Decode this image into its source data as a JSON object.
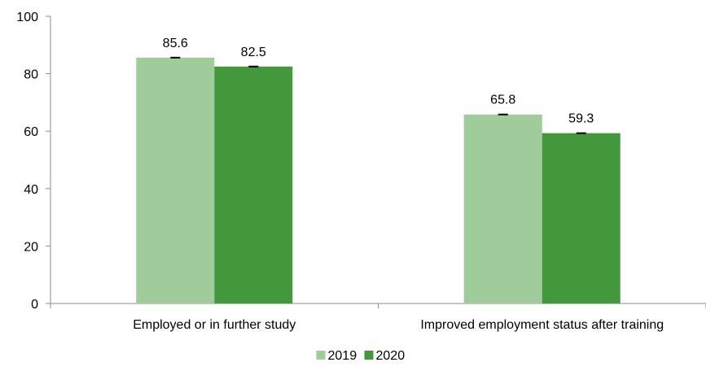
{
  "chart_data": {
    "type": "bar",
    "title": "",
    "xlabel": "",
    "ylabel": "",
    "ylim": [
      0,
      100
    ],
    "yticks": [
      0,
      20,
      40,
      60,
      80,
      100
    ],
    "categories": [
      "Employed or in further study",
      "Improved employment status after training"
    ],
    "series": [
      {
        "name": "2019",
        "values": [
          85.6,
          65.8
        ],
        "color": "#a0cb9a"
      },
      {
        "name": "2020",
        "values": [
          82.5,
          59.3
        ],
        "color": "#43983b"
      }
    ],
    "data_labels": [
      [
        "85.6",
        "65.8"
      ],
      [
        "82.5",
        "59.3"
      ]
    ],
    "error_bars": true,
    "grid": false,
    "legend": "bottom-center"
  }
}
